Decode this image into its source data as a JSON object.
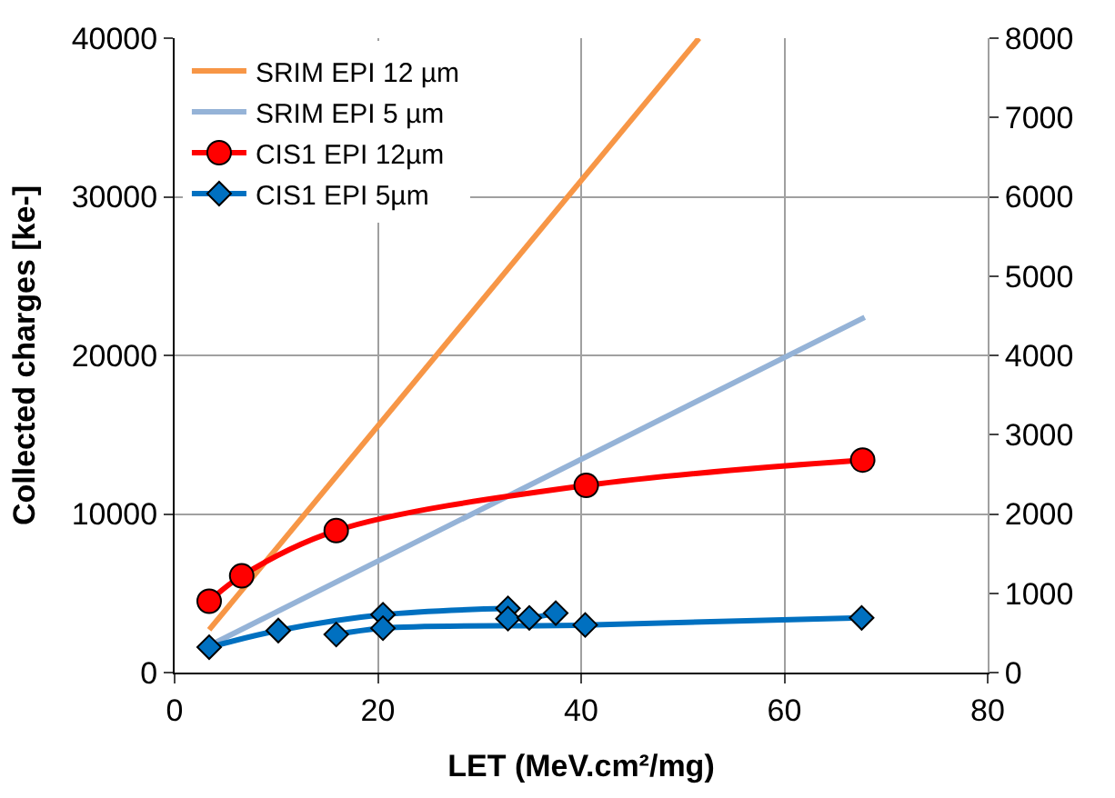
{
  "chart_data": {
    "type": "line",
    "xlabel": "LET (MeV.cm²/mg)",
    "ylabel": "Collected charges [ke-]",
    "xlim": [
      0,
      80
    ],
    "xticks": [
      0,
      20,
      40,
      60,
      80
    ],
    "ylim": [
      0,
      40000
    ],
    "yticks": [
      0,
      10000,
      20000,
      30000,
      40000
    ],
    "y2lim": [
      0,
      8000
    ],
    "y2ticks": [
      0,
      1000,
      2000,
      3000,
      4000,
      5000,
      6000,
      7000,
      8000
    ],
    "grid": true,
    "legend": "top left",
    "series": [
      {
        "name": "SRIM EPI 12 µm",
        "color": "#f79646",
        "marker": "none",
        "x": [
          3.4,
          51.6
        ],
        "values": [
          2700,
          40000
        ]
      },
      {
        "name": "SRIM EPI 5 µm",
        "color": "#95b3d7",
        "marker": "none",
        "x": [
          3.4,
          67.9
        ],
        "values": [
          1700,
          22400
        ]
      },
      {
        "name": "CIS1 EPI 12µm",
        "color": "#ff0000",
        "marker": "circle",
        "axis": "y2",
        "x": [
          3.4,
          6.6,
          15.9,
          40.5,
          67.7
        ],
        "values": [
          900,
          1220,
          1790,
          2360,
          2680
        ]
      },
      {
        "name": "CIS1 EPI 5µm",
        "color": "#0070c0",
        "marker": "diamond",
        "axis": "y2",
        "x": [
          3.4,
          10.2,
          20.5,
          32.8,
          null,
          32.8,
          34.9,
          37.5,
          null,
          15.9,
          20.5,
          40.4,
          67.6
        ],
        "values": [
          320,
          530,
          730,
          810,
          null,
          680,
          690,
          750,
          null,
          480,
          560,
          600,
          690
        ]
      }
    ]
  }
}
